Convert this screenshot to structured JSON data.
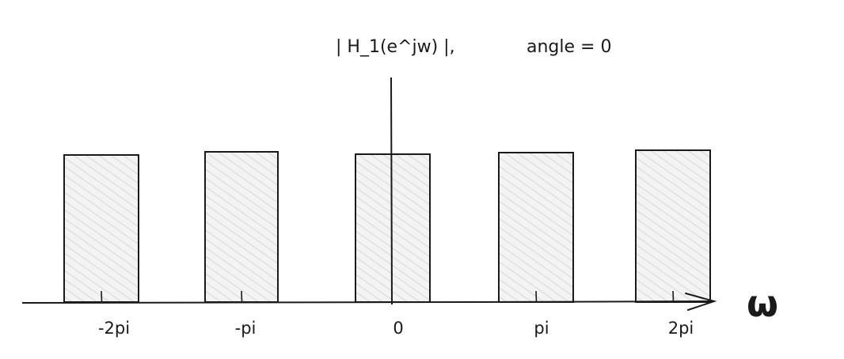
{
  "diagram": {
    "title_magnitude": "| H_1(e^jw) |,",
    "title_phase": "angle = 0",
    "axis_symbol": "ω",
    "tick_labels": [
      "-2pi",
      "-pi",
      "0",
      "pi",
      "2pi"
    ],
    "colors": {
      "stroke": "#1a1a1a",
      "hatch": "#cfcfcf",
      "fill": "#f3f3f3"
    }
  },
  "chart_data": {
    "type": "bar",
    "categories": [
      "-2pi",
      "-pi",
      "0",
      "pi",
      "2pi"
    ],
    "values": [
      1,
      1,
      1,
      1,
      1
    ],
    "xlabel": "ω",
    "grid": false
  }
}
